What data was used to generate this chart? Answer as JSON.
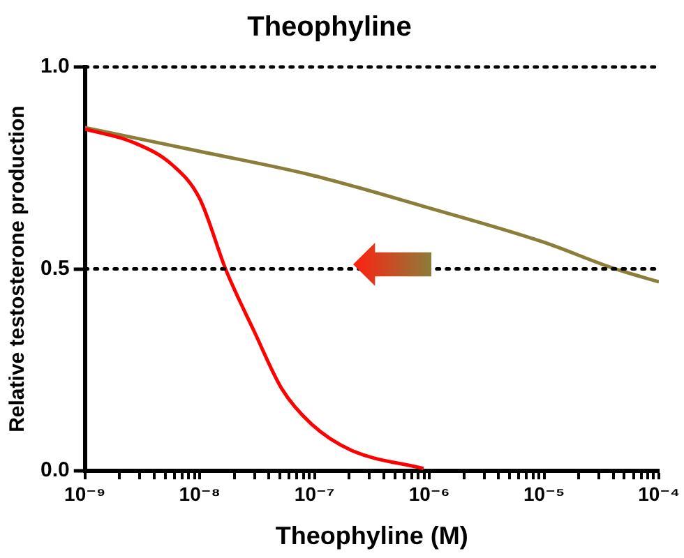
{
  "chart_data": {
    "type": "line",
    "title": "Theophyline",
    "xlabel": "Theophyline (M)",
    "ylabel": "Relative testosterone production",
    "log": "x",
    "grid": "y",
    "legend": false,
    "marker": "none",
    "line_style": "solid",
    "xlim": [
      1e-09,
      0.0001
    ],
    "ylim": [
      0,
      1
    ],
    "xticks": [
      {
        "value": 1e-09,
        "label": "10⁻⁹"
      },
      {
        "value": 2e-09,
        "label": null
      },
      {
        "value": 3e-09,
        "label": null
      },
      {
        "value": 4e-09,
        "label": null
      },
      {
        "value": 5e-09,
        "label": null
      },
      {
        "value": 6e-09,
        "label": null
      },
      {
        "value": 7e-09,
        "label": null
      },
      {
        "value": 8e-09,
        "label": null
      },
      {
        "value": 9e-09,
        "label": null
      },
      {
        "value": 1e-08,
        "label": "10⁻⁸"
      },
      {
        "value": 2e-08,
        "label": null
      },
      {
        "value": 3e-08,
        "label": null
      },
      {
        "value": 4e-08,
        "label": null
      },
      {
        "value": 5e-08,
        "label": null
      },
      {
        "value": 6e-08,
        "label": null
      },
      {
        "value": 7e-08,
        "label": null
      },
      {
        "value": 8e-08,
        "label": null
      },
      {
        "value": 9e-08,
        "label": null
      },
      {
        "value": 1e-07,
        "label": "10⁻⁷"
      },
      {
        "value": 2e-07,
        "label": null
      },
      {
        "value": 3e-07,
        "label": null
      },
      {
        "value": 4e-07,
        "label": null
      },
      {
        "value": 5e-07,
        "label": null
      },
      {
        "value": 6e-07,
        "label": null
      },
      {
        "value": 7e-07,
        "label": null
      },
      {
        "value": 8e-07,
        "label": null
      },
      {
        "value": 9e-07,
        "label": null
      },
      {
        "value": 1e-06,
        "label": "10⁻⁶"
      },
      {
        "value": 2e-06,
        "label": null
      },
      {
        "value": 3e-06,
        "label": null
      },
      {
        "value": 4e-06,
        "label": null
      },
      {
        "value": 5e-06,
        "label": null
      },
      {
        "value": 6e-06,
        "label": null
      },
      {
        "value": 7e-06,
        "label": null
      },
      {
        "value": 8e-06,
        "label": null
      },
      {
        "value": 9e-06,
        "label": null
      },
      {
        "value": 1e-05,
        "label": "10⁻⁵"
      },
      {
        "value": 2e-05,
        "label": null
      },
      {
        "value": 3e-05,
        "label": null
      },
      {
        "value": 4e-05,
        "label": null
      },
      {
        "value": 5e-05,
        "label": null
      },
      {
        "value": 6e-05,
        "label": null
      },
      {
        "value": 7e-05,
        "label": null
      },
      {
        "value": 8e-05,
        "label": null
      },
      {
        "value": 9e-05,
        "label": null
      },
      {
        "value": 0.0001,
        "label": "10⁻⁴"
      }
    ],
    "yticks": [
      {
        "value": 0,
        "label": "0.0"
      },
      0.5,
      {
        "value": 1,
        "label": "1.0"
      }
    ],
    "series": [
      {
        "color": "#ff0000",
        "x": [
          1e-09,
          2.6e-09,
          5.8e-09,
          1e-08,
          1.7e-08,
          3e-08,
          5.2e-08,
          9.5e-08,
          2.1e-07,
          8.9e-07
        ],
        "values": [
          0.846,
          0.814,
          0.757,
          0.674,
          0.496,
          0.344,
          0.203,
          0.115,
          0.051,
          0.006
        ]
      },
      {
        "color": "#8b7d3a",
        "x": [
          1e-09,
          1e-08,
          9.5e-08,
          8.9e-07,
          1e-05,
          3.9e-05,
          0.0001
        ],
        "values": [
          0.85,
          0.791,
          0.732,
          0.655,
          0.566,
          0.503,
          0.468
        ]
      }
    ]
  }
}
